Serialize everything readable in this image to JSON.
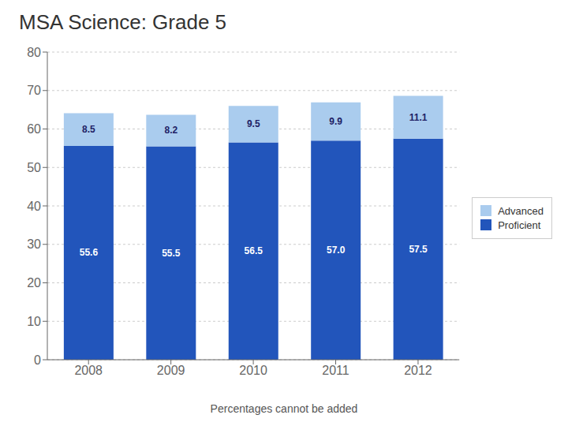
{
  "chart_data": {
    "type": "bar",
    "title": "MSA Science: Grade 5",
    "subtitle": "Percentages cannot be added",
    "categories": [
      "2008",
      "2009",
      "2010",
      "2011",
      "2012"
    ],
    "series": [
      {
        "name": "Proficient",
        "color": "#2255BB",
        "values": [
          55.6,
          55.5,
          56.5,
          57.0,
          57.5
        ],
        "value_labels": [
          "55.6",
          "55.5",
          "56.5",
          "57.0",
          "57.5"
        ]
      },
      {
        "name": "Advanced",
        "color": "#AACCEE",
        "values": [
          8.5,
          8.2,
          9.5,
          9.9,
          11.1
        ]
      }
    ],
    "stacked": true,
    "data_labels": true,
    "ylim": [
      0,
      80
    ],
    "yticks": [
      0,
      10,
      20,
      30,
      40,
      50,
      60,
      70,
      80
    ],
    "grid": true,
    "legend": "right"
  }
}
